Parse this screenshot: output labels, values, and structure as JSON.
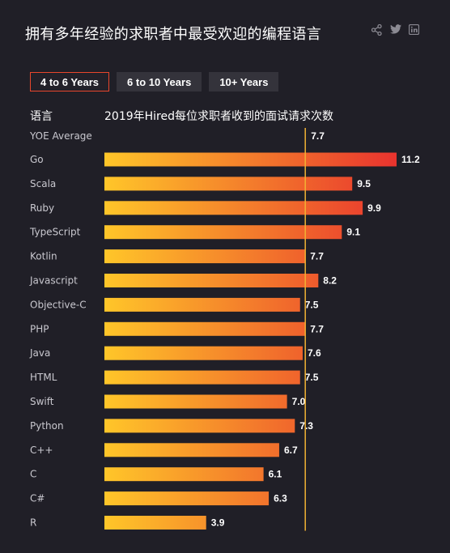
{
  "title": "拥有多年经验的求职者中最受欢迎的编程语言",
  "share_icons": [
    "share-icon",
    "twitter-icon",
    "linkedin-icon"
  ],
  "tabs": [
    {
      "label": "4 to 6 Years",
      "active": true
    },
    {
      "label": "6 to 10 Years",
      "active": false
    },
    {
      "label": "10+ Years",
      "active": false
    }
  ],
  "colors": {
    "background": "#201f27",
    "bar_start": "#ffc629",
    "bar_end": "#e8332e",
    "average_line": "#f2b233",
    "active_tab_border": "#e8462c"
  },
  "chart_data": {
    "type": "bar",
    "orientation": "horizontal",
    "category_header": "语言",
    "title": "2019年Hired每位求职者收到的面试请求次数",
    "average": {
      "label": "YOE Average",
      "value": 7.7,
      "value_label": "7.7"
    },
    "categories": [
      "Go",
      "Scala",
      "Ruby",
      "TypeScript",
      "Kotlin",
      "Javascript",
      "Objective-C",
      "PHP",
      "Java",
      "HTML",
      "Swift",
      "Python",
      "C++",
      "C",
      "C#",
      "R"
    ],
    "values": [
      11.2,
      9.5,
      9.9,
      9.1,
      7.7,
      8.2,
      7.5,
      7.7,
      7.6,
      7.5,
      7.0,
      7.3,
      6.7,
      6.1,
      6.3,
      3.9
    ],
    "value_labels": [
      "11.2",
      "9.5",
      "9.9",
      "9.1",
      "7.7",
      "8.2",
      "7.5",
      "7.7",
      "7.6",
      "7.5",
      "7.0",
      "7.3",
      "6.7",
      "6.1",
      "6.3",
      "3.9"
    ],
    "xlim": [
      0,
      11.2
    ],
    "grid": false,
    "legend": "none"
  }
}
